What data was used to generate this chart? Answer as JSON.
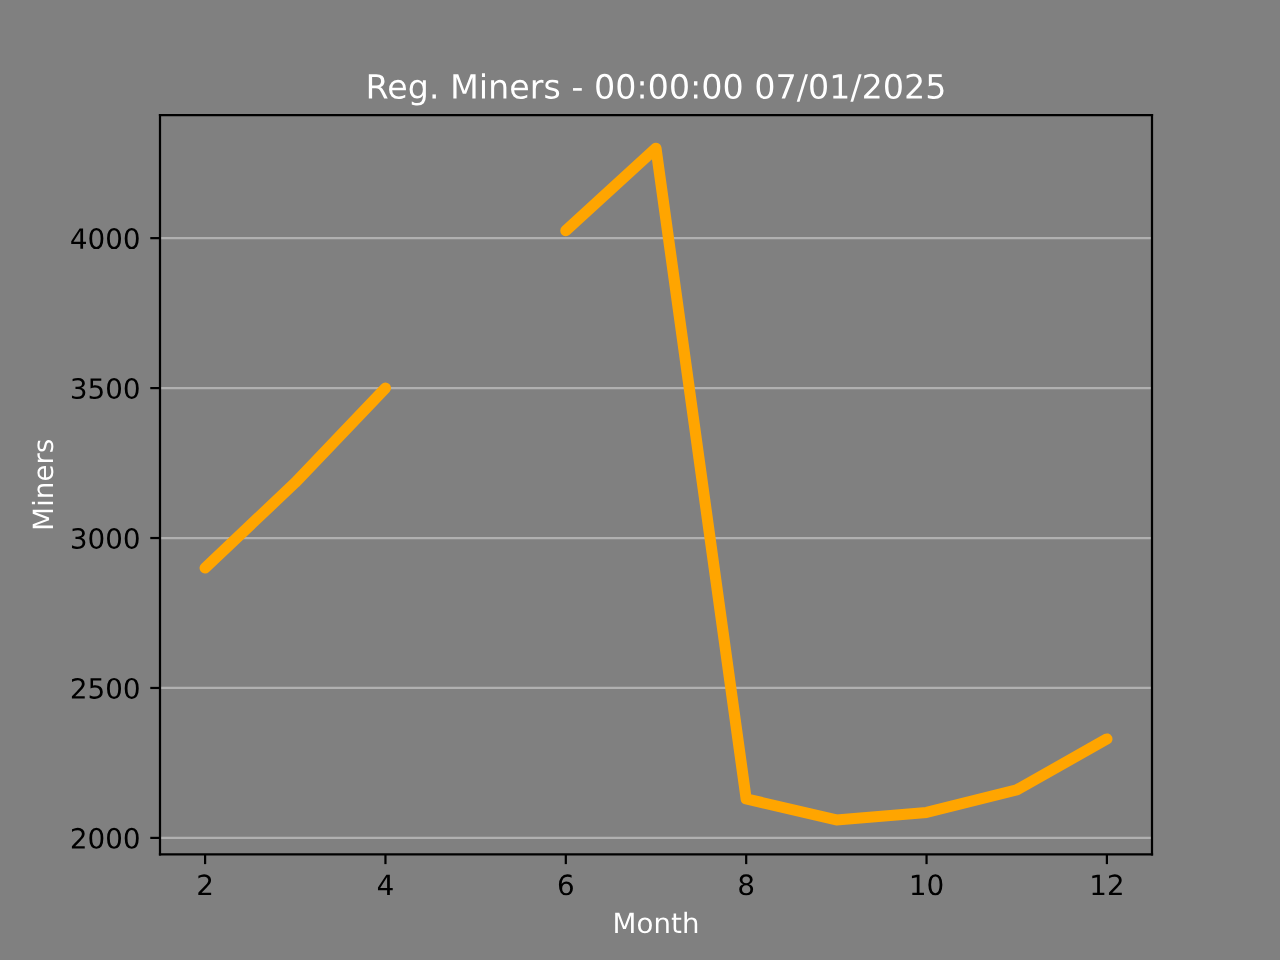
{
  "chart_data": {
    "type": "line",
    "title": "Reg. Miners - 00:00:00 07/01/2025",
    "xlabel": "Month",
    "ylabel": "Miners",
    "x": [
      2,
      3,
      4,
      5,
      6,
      7,
      8,
      9,
      10,
      11,
      12
    ],
    "series": [
      {
        "color": "#ffa500",
        "values": [
          2900,
          3185,
          3500,
          null,
          4025,
          4300,
          2130,
          2060,
          2085,
          2160,
          2330
        ]
      }
    ],
    "xlim": [
      1.5,
      12.5
    ],
    "ylim": [
      1945,
      4410
    ],
    "xticks": [
      2,
      4,
      6,
      8,
      10,
      12
    ],
    "yticks": [
      2000,
      2500,
      3000,
      3500,
      4000
    ],
    "grid": "y",
    "marker": "none",
    "line_style": "solid",
    "legend": false
  }
}
